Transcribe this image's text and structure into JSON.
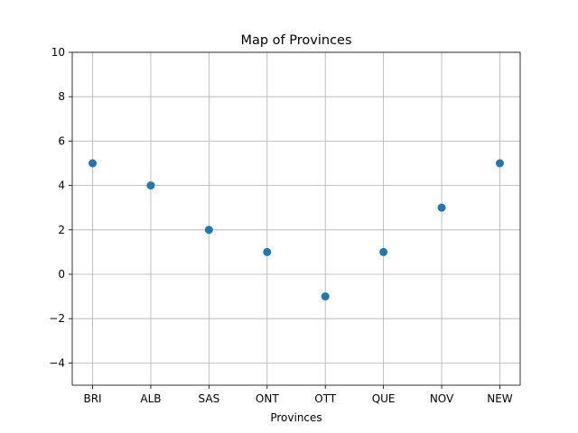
{
  "chart_data": {
    "type": "scatter",
    "title": "Map of Provinces",
    "xlabel": "Provinces",
    "ylabel": "",
    "categories": [
      "BRI",
      "ALB",
      "SAS",
      "ONT",
      "OTT",
      "QUE",
      "NOV",
      "NEW"
    ],
    "series": [
      {
        "values": [
          5,
          4,
          2,
          1,
          -1,
          1,
          3,
          5
        ]
      }
    ],
    "ylim": [
      -5,
      10
    ],
    "yticks": [
      -4,
      -2,
      0,
      2,
      4,
      6,
      8,
      10
    ],
    "grid": true,
    "marker_color": "#1f77b4"
  }
}
